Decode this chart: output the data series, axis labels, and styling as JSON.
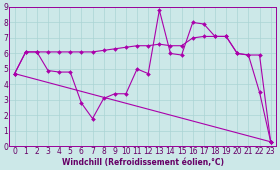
{
  "xlabel": "Windchill (Refroidissement éolien,°C)",
  "background_color": "#cce8e8",
  "line_color": "#aa00aa",
  "grid_color": "#aad4d4",
  "xlim": [
    -0.5,
    23.5
  ],
  "ylim": [
    0,
    9
  ],
  "series": [
    {
      "x": [
        0,
        1,
        2,
        3,
        4,
        5,
        6,
        7,
        8,
        9,
        10,
        11,
        12,
        13,
        14,
        15,
        16,
        17,
        18,
        19,
        20,
        21,
        22,
        23
      ],
      "y": [
        4.7,
        6.1,
        6.1,
        4.9,
        4.8,
        4.8,
        2.8,
        1.8,
        3.1,
        3.4,
        3.4,
        5.0,
        4.7,
        8.8,
        6.0,
        5.9,
        8.0,
        7.9,
        7.1,
        7.1,
        6.0,
        5.9,
        3.5,
        0.3
      ]
    },
    {
      "x": [
        0,
        1,
        2,
        3,
        4,
        5,
        6,
        7,
        8,
        9,
        10,
        11,
        12,
        13,
        14,
        15,
        16,
        17,
        18,
        19,
        20,
        21,
        22,
        23
      ],
      "y": [
        4.7,
        6.1,
        6.1,
        6.1,
        6.1,
        6.1,
        6.1,
        6.1,
        6.2,
        6.3,
        6.4,
        6.5,
        6.5,
        6.6,
        6.5,
        6.5,
        7.0,
        7.1,
        7.1,
        7.1,
        6.0,
        5.9,
        5.9,
        0.3
      ]
    },
    {
      "x": [
        0,
        23
      ],
      "y": [
        4.7,
        0.3
      ]
    }
  ],
  "xtick_labels": [
    "0",
    "1",
    "2",
    "3",
    "4",
    "5",
    "6",
    "7",
    "8",
    "9",
    "10",
    "11",
    "12",
    "13",
    "14",
    "15",
    "16",
    "17",
    "18",
    "19",
    "20",
    "21",
    "22",
    "23"
  ],
  "ytick_labels": [
    "0",
    "1",
    "2",
    "3",
    "4",
    "5",
    "6",
    "7",
    "8",
    "9"
  ],
  "xlabel_fontsize": 5.5,
  "tick_fontsize": 5.5,
  "marker_size": 2.0,
  "linewidth": 0.8
}
